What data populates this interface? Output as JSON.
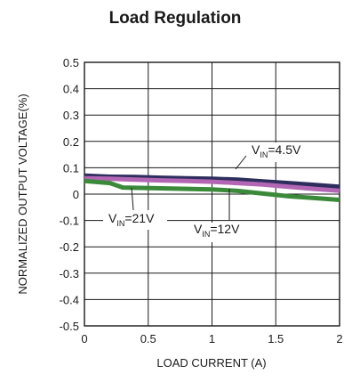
{
  "chart_data": {
    "type": "line",
    "title": "Load Regulation",
    "xlabel": "LOAD CURRENT (A)",
    "ylabel": "NORMALIZED OUTPUT VOLTAGE(%)",
    "xlim": [
      0,
      2
    ],
    "ylim": [
      -0.5,
      0.5
    ],
    "xticks": [
      "0",
      "0.5",
      "1",
      "1.5",
      "2"
    ],
    "yticks": [
      "0.5",
      "0.4",
      "0.3",
      "0.2",
      "0.1",
      "0",
      "-0.1",
      "-0.2",
      "-0.3",
      "-0.4",
      "-0.5"
    ],
    "grid": true,
    "series": [
      {
        "name": "VIN=4.5V",
        "label_main": "V",
        "label_sub": "IN",
        "label_tail": "=4.5V",
        "color": "#2e2e5e",
        "x": [
          0,
          0.2,
          0.4,
          0.6,
          0.8,
          1.0,
          1.2,
          1.4,
          1.6,
          1.8,
          2.0
        ],
        "y": [
          0.07,
          0.066,
          0.065,
          0.062,
          0.06,
          0.058,
          0.055,
          0.048,
          0.042,
          0.035,
          0.028
        ]
      },
      {
        "name": "VIN=12V",
        "label_main": "V",
        "label_sub": "IN",
        "label_tail": "=12V",
        "color": "#b366b3",
        "x": [
          0,
          0.2,
          0.4,
          0.6,
          0.8,
          1.0,
          1.2,
          1.4,
          1.6,
          1.8,
          2.0
        ],
        "y": [
          0.06,
          0.058,
          0.055,
          0.052,
          0.05,
          0.047,
          0.042,
          0.036,
          0.028,
          0.02,
          0.013
        ]
      },
      {
        "name": "VIN=21V",
        "label_main": "V",
        "label_sub": "IN",
        "label_tail": "=21V",
        "color": "#3a8a3a",
        "x": [
          0,
          0.2,
          0.3,
          0.6,
          0.8,
          1.0,
          1.2,
          1.4,
          1.6,
          1.8,
          2.0
        ],
        "y": [
          0.05,
          0.042,
          0.025,
          0.022,
          0.02,
          0.018,
          0.012,
          0.002,
          -0.008,
          -0.015,
          -0.022
        ]
      }
    ]
  }
}
